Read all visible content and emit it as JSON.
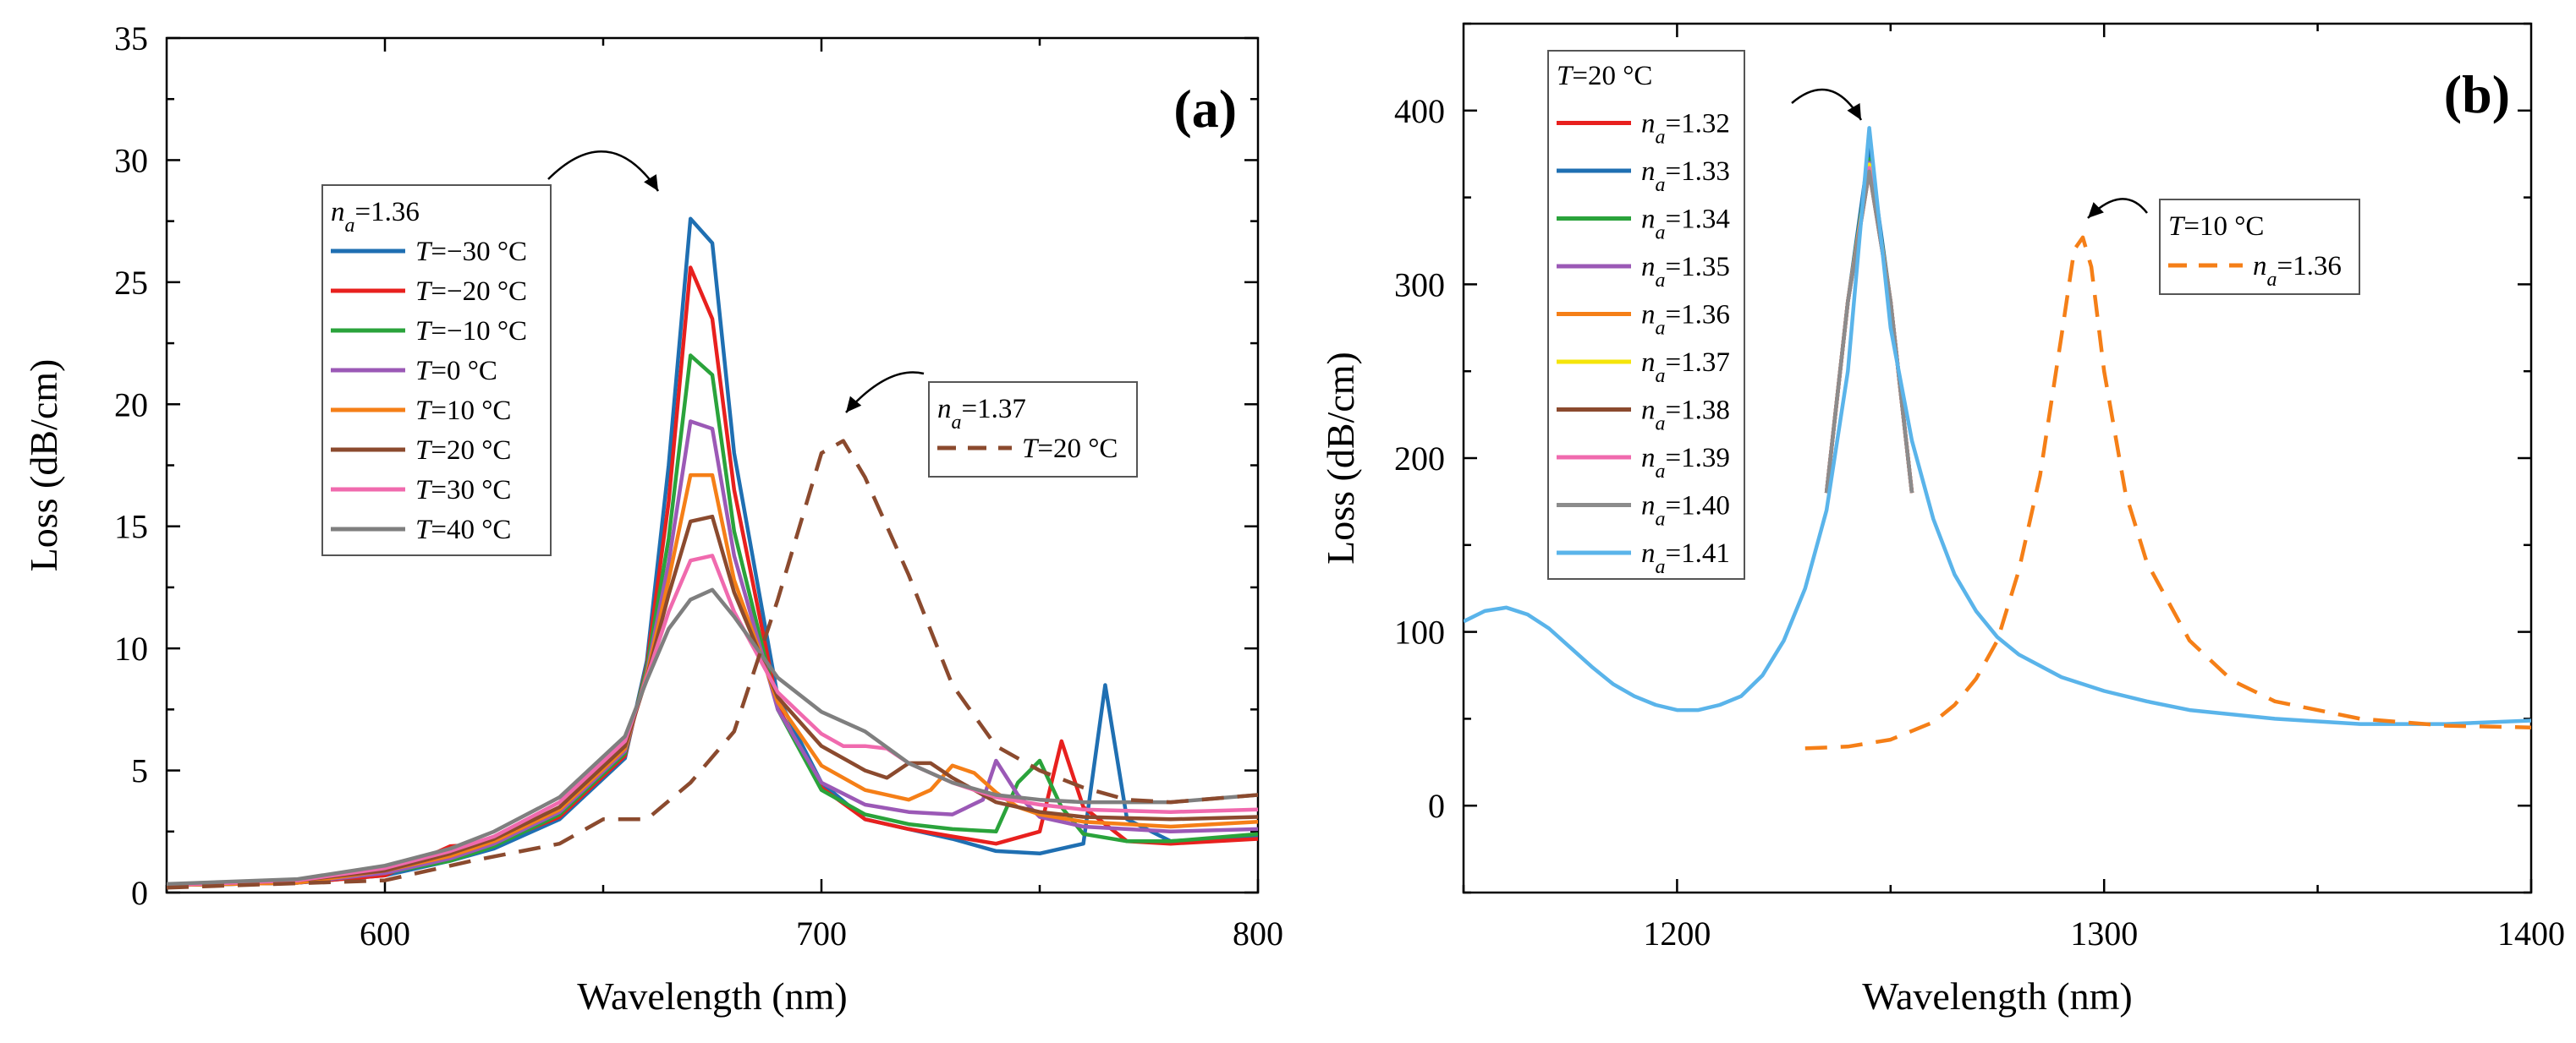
{
  "chart_data": [
    {
      "panel": "(a)",
      "type": "line",
      "xlabel": "Wavelength (nm)",
      "ylabel": "Loss (dB/cm)",
      "xlim": [
        550,
        800
      ],
      "ylim": [
        0,
        35
      ],
      "x_ticks": [
        600,
        700,
        800
      ],
      "y_ticks": [
        0,
        5,
        10,
        15,
        20,
        25,
        30,
        35
      ],
      "legend_main": {
        "header_symbol": "n",
        "header_sub": "a",
        "header_value": "=1.36"
      },
      "legend_second": {
        "header_symbol": "n",
        "header_sub": "a",
        "header_value": "=1.37",
        "entry": "=20 °C"
      },
      "series": [
        {
          "name": "=−30 °C",
          "color": "#1f6fb2",
          "dash": "solid",
          "x": [
            550,
            580,
            600,
            615,
            625,
            640,
            655,
            660,
            665,
            670,
            675,
            680,
            690,
            700,
            710,
            720,
            730,
            740,
            750,
            760,
            765,
            770,
            780,
            800
          ],
          "y": [
            0.3,
            0.4,
            0.7,
            1.3,
            1.8,
            3.0,
            5.5,
            9.5,
            17.5,
            27.6,
            26.6,
            18.0,
            8.0,
            4.5,
            3.0,
            2.6,
            2.2,
            1.7,
            1.6,
            2.0,
            8.5,
            3.0,
            2.1,
            2.3
          ]
        },
        {
          "name": "=−20 °C",
          "color": "#e8201e",
          "dash": "solid",
          "x": [
            550,
            580,
            600,
            615,
            625,
            640,
            655,
            660,
            665,
            670,
            675,
            680,
            690,
            700,
            710,
            720,
            730,
            740,
            750,
            755,
            760,
            770,
            780,
            800
          ],
          "y": [
            0.3,
            0.4,
            0.7,
            1.9,
            2.0,
            3.1,
            5.6,
            9.3,
            16.0,
            25.6,
            23.5,
            16.5,
            7.6,
            4.3,
            3.0,
            2.6,
            2.3,
            2.0,
            2.5,
            6.2,
            3.5,
            2.1,
            2.0,
            2.2
          ]
        },
        {
          "name": "=−10 °C",
          "color": "#2aa33b",
          "dash": "solid",
          "x": [
            550,
            580,
            600,
            615,
            625,
            640,
            655,
            660,
            665,
            670,
            675,
            680,
            690,
            700,
            710,
            720,
            730,
            740,
            745,
            750,
            755,
            760,
            770,
            780,
            800
          ],
          "y": [
            0.3,
            0.4,
            0.8,
            1.3,
            1.9,
            3.2,
            5.7,
            9.2,
            14.5,
            22.0,
            21.2,
            14.8,
            7.5,
            4.2,
            3.2,
            2.8,
            2.6,
            2.5,
            4.5,
            5.4,
            3.5,
            2.4,
            2.1,
            2.1,
            2.4
          ]
        },
        {
          "name": "=0 °C",
          "color": "#9b59b6",
          "dash": "solid",
          "x": [
            550,
            580,
            600,
            615,
            625,
            640,
            655,
            660,
            665,
            670,
            675,
            680,
            690,
            700,
            710,
            720,
            730,
            737,
            740,
            745,
            750,
            760,
            780,
            800
          ],
          "y": [
            0.3,
            0.4,
            0.8,
            1.4,
            2.0,
            3.3,
            5.8,
            9.0,
            13.5,
            19.3,
            19.0,
            13.8,
            7.5,
            4.5,
            3.6,
            3.3,
            3.2,
            3.8,
            5.4,
            4.0,
            3.1,
            2.7,
            2.5,
            2.6
          ]
        },
        {
          "name": "=10 °C",
          "color": "#f57f17",
          "dash": "solid",
          "x": [
            550,
            580,
            600,
            615,
            625,
            640,
            655,
            660,
            665,
            670,
            675,
            680,
            690,
            700,
            710,
            720,
            725,
            730,
            735,
            740,
            745,
            750,
            760,
            780,
            800
          ],
          "y": [
            0.3,
            0.4,
            0.9,
            1.5,
            2.1,
            3.4,
            5.9,
            8.9,
            12.8,
            17.1,
            17.1,
            12.8,
            7.8,
            5.2,
            4.2,
            3.8,
            4.2,
            5.2,
            4.9,
            4.1,
            3.5,
            3.2,
            2.9,
            2.7,
            2.9
          ]
        },
        {
          "name": "=20 °C",
          "color": "#8b4a2e",
          "dash": "solid",
          "x": [
            550,
            580,
            600,
            615,
            625,
            640,
            655,
            660,
            665,
            670,
            675,
            680,
            690,
            700,
            710,
            715,
            720,
            725,
            730,
            740,
            750,
            760,
            780,
            800
          ],
          "y": [
            0.3,
            0.5,
            0.9,
            1.6,
            2.2,
            3.5,
            6.0,
            8.8,
            12.2,
            15.2,
            15.4,
            12.3,
            8.0,
            6.0,
            5.0,
            4.7,
            5.3,
            5.3,
            4.7,
            3.7,
            3.3,
            3.1,
            3.0,
            3.1
          ]
        },
        {
          "name": "=30 °C",
          "color": "#f06aae",
          "dash": "solid",
          "x": [
            550,
            580,
            600,
            615,
            625,
            640,
            655,
            660,
            665,
            670,
            675,
            680,
            690,
            700,
            705,
            710,
            715,
            720,
            730,
            740,
            750,
            760,
            780,
            800
          ],
          "y": [
            0.3,
            0.5,
            1.0,
            1.7,
            2.3,
            3.7,
            6.2,
            8.8,
            11.5,
            13.6,
            13.8,
            11.5,
            8.2,
            6.5,
            6.0,
            6.0,
            5.9,
            5.3,
            4.5,
            3.9,
            3.6,
            3.4,
            3.3,
            3.4
          ]
        },
        {
          "name": "=40 °C",
          "color": "#7f7f7f",
          "dash": "solid",
          "x": [
            550,
            580,
            600,
            615,
            625,
            640,
            655,
            660,
            665,
            670,
            675,
            680,
            690,
            700,
            705,
            710,
            720,
            730,
            740,
            750,
            760,
            780,
            800
          ],
          "y": [
            0.35,
            0.55,
            1.1,
            1.8,
            2.5,
            3.9,
            6.4,
            8.7,
            10.8,
            12.0,
            12.4,
            11.3,
            8.8,
            7.4,
            7.0,
            6.6,
            5.3,
            4.5,
            4.0,
            3.8,
            3.7,
            3.7,
            4.0
          ]
        },
        {
          "name": "=20 °C (n_a=1.37)",
          "color": "#8b4a2e",
          "dash": "dashed",
          "x": [
            550,
            600,
            620,
            640,
            650,
            660,
            670,
            680,
            690,
            700,
            705,
            710,
            720,
            730,
            740,
            750,
            760,
            770,
            780,
            800
          ],
          "y": [
            0.2,
            0.5,
            1.3,
            2.0,
            3.0,
            3.0,
            4.5,
            6.6,
            12.0,
            18.0,
            18.5,
            17.0,
            13.0,
            8.5,
            6.0,
            5.0,
            4.3,
            3.8,
            3.7,
            4.0
          ]
        }
      ]
    },
    {
      "panel": "(b)",
      "type": "line",
      "xlabel": "Wavelength (nm)",
      "ylabel": "Loss (dB/cm)",
      "xlim": [
        1150,
        1400
      ],
      "ylim": [
        -50,
        450
      ],
      "x_ticks": [
        1200,
        1300,
        1400
      ],
      "y_ticks": [
        0,
        100,
        200,
        300,
        400
      ],
      "legend_main": {
        "header_symbol": "T",
        "header_value": "=20 °C",
        "entry_symbol": "n",
        "entry_sub": "a"
      },
      "legend_second": {
        "header_symbol": "T",
        "header_value": "=10 °C",
        "entry_symbol": "n",
        "entry_sub": "a",
        "entry_value": "=1.36"
      },
      "series": [
        {
          "name": "=1.32",
          "color": "#e8201e",
          "dash": "solid",
          "x": [
            1235,
            1240,
            1245,
            1250,
            1255
          ],
          "y": [
            180,
            290,
            365,
            290,
            180
          ]
        },
        {
          "name": "=1.33",
          "color": "#1f6fb2",
          "dash": "solid",
          "x": [
            1235,
            1240,
            1245,
            1250,
            1255
          ],
          "y": [
            180,
            290,
            378,
            290,
            180
          ]
        },
        {
          "name": "=1.34",
          "color": "#2aa33b",
          "dash": "solid",
          "x": [
            1235,
            1240,
            1245,
            1250,
            1255
          ],
          "y": [
            180,
            290,
            372,
            290,
            180
          ]
        },
        {
          "name": "=1.35",
          "color": "#9b59b6",
          "dash": "solid",
          "x": [
            1235,
            1240,
            1245,
            1250,
            1255
          ],
          "y": [
            180,
            290,
            370,
            290,
            180
          ]
        },
        {
          "name": "=1.36",
          "color": "#f57f17",
          "dash": "solid",
          "x": [
            1235,
            1240,
            1245,
            1250,
            1255
          ],
          "y": [
            180,
            290,
            368,
            290,
            180
          ]
        },
        {
          "name": "=1.37",
          "color": "#f5e50a",
          "dash": "solid",
          "x": [
            1235,
            1240,
            1245,
            1250,
            1255
          ],
          "y": [
            180,
            290,
            369,
            290,
            180
          ]
        },
        {
          "name": "=1.38",
          "color": "#8b4a2e",
          "dash": "solid",
          "x": [
            1235,
            1240,
            1245,
            1250,
            1255
          ],
          "y": [
            180,
            290,
            366,
            290,
            180
          ]
        },
        {
          "name": "=1.39",
          "color": "#f06aae",
          "dash": "solid",
          "x": [
            1235,
            1240,
            1245,
            1250,
            1255
          ],
          "y": [
            180,
            290,
            367,
            290,
            180
          ]
        },
        {
          "name": "=1.40",
          "color": "#8c8c8c",
          "dash": "solid",
          "x": [
            1235,
            1240,
            1245,
            1250,
            1255
          ],
          "y": [
            180,
            290,
            365,
            290,
            180
          ]
        },
        {
          "name": "=1.41",
          "color": "#5ab4ea",
          "dash": "solid",
          "x": [
            1150,
            1155,
            1160,
            1165,
            1170,
            1175,
            1180,
            1185,
            1190,
            1195,
            1200,
            1205,
            1210,
            1215,
            1220,
            1225,
            1230,
            1235,
            1240,
            1245,
            1250,
            1255,
            1260,
            1265,
            1270,
            1275,
            1280,
            1290,
            1300,
            1310,
            1320,
            1340,
            1360,
            1380,
            1400
          ],
          "y": [
            106,
            112,
            114,
            110,
            102,
            91,
            80,
            70,
            63,
            58,
            55,
            55,
            58,
            63,
            75,
            95,
            125,
            170,
            250,
            390,
            275,
            210,
            165,
            133,
            112,
            97,
            87,
            74,
            66,
            60,
            55,
            50,
            47,
            47,
            49
          ]
        },
        {
          "name": "=1.36 (T=10 °C)",
          "color": "#f57f17",
          "dash": "dashed",
          "x": [
            1230,
            1240,
            1250,
            1260,
            1265,
            1270,
            1275,
            1280,
            1285,
            1290,
            1293,
            1295,
            1297,
            1300,
            1305,
            1310,
            1320,
            1330,
            1340,
            1360,
            1380,
            1400
          ],
          "y": [
            33,
            34,
            38,
            48,
            58,
            73,
            95,
            135,
            190,
            270,
            320,
            327,
            310,
            250,
            180,
            140,
            95,
            72,
            60,
            50,
            46,
            45
          ]
        }
      ]
    }
  ]
}
